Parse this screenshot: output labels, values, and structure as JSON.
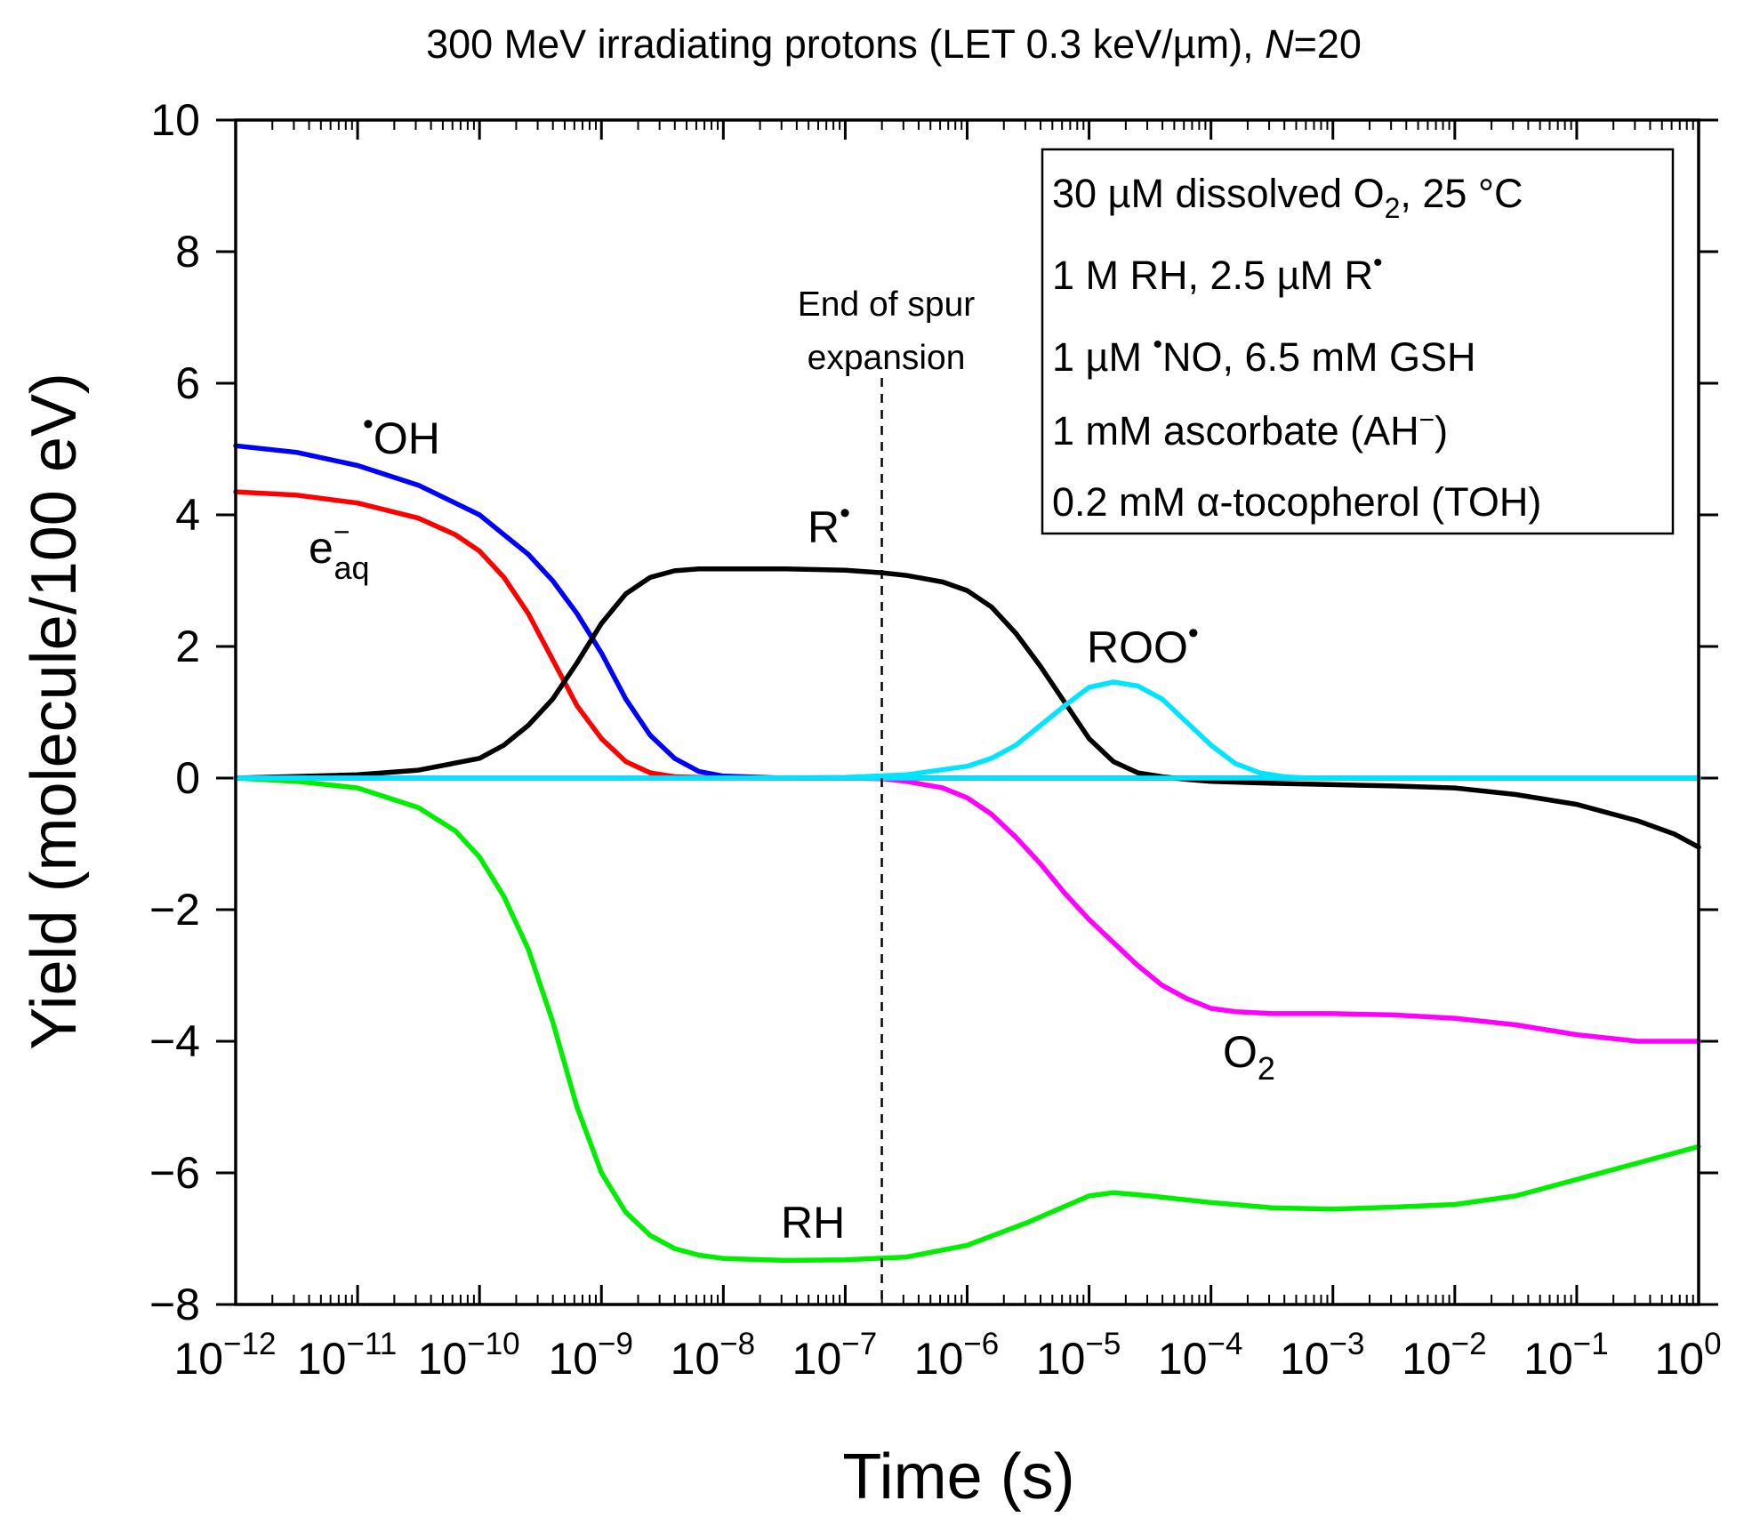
{
  "chart_data": {
    "type": "line",
    "title": {
      "main": "300 MeV irradiating protons (LET 0.3 keV/µm), ",
      "n_symbol": "N",
      "n_value": "=20"
    },
    "xlabel": "Time (s)",
    "ylabel": "Yield (molecule/100 eV)",
    "x_scale": "log",
    "xlim": [
      -12,
      0
    ],
    "ylim": [
      -8,
      10
    ],
    "x_ticks": [
      {
        "base": "10",
        "exp": "−12"
      },
      {
        "base": "10",
        "exp": "−11"
      },
      {
        "base": "10",
        "exp": "−10"
      },
      {
        "base": "10",
        "exp": "−9"
      },
      {
        "base": "10",
        "exp": "−8"
      },
      {
        "base": "10",
        "exp": "−7"
      },
      {
        "base": "10",
        "exp": "−6"
      },
      {
        "base": "10",
        "exp": "−5"
      },
      {
        "base": "10",
        "exp": "−4"
      },
      {
        "base": "10",
        "exp": "−3"
      },
      {
        "base": "10",
        "exp": "−2"
      },
      {
        "base": "10",
        "exp": "−1"
      },
      {
        "base": "10",
        "exp": "0"
      }
    ],
    "y_ticks": [
      "−8",
      "−6",
      "−4",
      "−2",
      "0",
      "2",
      "4",
      "6",
      "8",
      "10"
    ],
    "marker_line": {
      "log_time": -6.7,
      "label_line1": "End of spur",
      "label_line2": "expansion"
    },
    "conditions": {
      "line1_pre": "30 µM dissolved O",
      "line1_sub": "2",
      "line1_post": ", 25 °C",
      "line2_pre": "1 M RH, 2.5 µM R",
      "line2_dot": "•",
      "line3_pre": "1 µM ",
      "line3_dot": "•",
      "line3_post": "NO, 6.5 mM GSH",
      "line4_pre": "1 mM ascorbate (AH",
      "line4_sup": "−",
      "line4_post": ")",
      "line5": "0.2 mM α-tocopherol (TOH)"
    },
    "series": [
      {
        "name": "OH",
        "dot": "•",
        "color": "#0000ff",
        "log_t": [
          -12,
          -11.5,
          -11,
          -10.5,
          -10,
          -9.8,
          -9.6,
          -9.4,
          -9.2,
          -9,
          -8.8,
          -8.6,
          -8.4,
          -8.2,
          -8,
          -7.5,
          -7,
          -6,
          -4,
          -2,
          0
        ],
        "values": [
          5.05,
          4.95,
          4.75,
          4.45,
          4.0,
          3.7,
          3.4,
          3.0,
          2.5,
          1.9,
          1.2,
          0.65,
          0.3,
          0.1,
          0.03,
          0,
          0,
          0,
          0,
          0,
          0
        ]
      },
      {
        "name": "e−aq",
        "label_main": "e",
        "label_sup": "−",
        "label_sub": "aq",
        "color": "#ff0000",
        "log_t": [
          -12,
          -11.5,
          -11,
          -10.5,
          -10.2,
          -10,
          -9.8,
          -9.6,
          -9.4,
          -9.2,
          -9,
          -8.8,
          -8.6,
          -8.4,
          -8,
          -7,
          -6,
          -4,
          -2,
          0
        ],
        "values": [
          4.35,
          4.3,
          4.18,
          3.95,
          3.7,
          3.45,
          3.05,
          2.5,
          1.8,
          1.1,
          0.6,
          0.25,
          0.08,
          0.02,
          0,
          0,
          0,
          0,
          0,
          0
        ]
      },
      {
        "name": "R",
        "dot": "•",
        "color": "#000000",
        "log_t": [
          -12,
          -11,
          -10.5,
          -10,
          -9.8,
          -9.6,
          -9.4,
          -9.2,
          -9,
          -8.8,
          -8.6,
          -8.4,
          -8.2,
          -8,
          -7.5,
          -7,
          -6.7,
          -6.5,
          -6.2,
          -6,
          -5.8,
          -5.6,
          -5.4,
          -5.2,
          -5,
          -4.8,
          -4.6,
          -4.4,
          -4.2,
          -4,
          -3.5,
          -3,
          -2.5,
          -2,
          -1.5,
          -1,
          -0.5,
          -0.2,
          0
        ],
        "values": [
          0,
          0.05,
          0.12,
          0.3,
          0.5,
          0.8,
          1.2,
          1.75,
          2.35,
          2.8,
          3.05,
          3.15,
          3.18,
          3.18,
          3.18,
          3.16,
          3.12,
          3.08,
          2.98,
          2.85,
          2.6,
          2.2,
          1.7,
          1.15,
          0.6,
          0.25,
          0.08,
          0.02,
          -0.02,
          -0.05,
          -0.08,
          -0.1,
          -0.12,
          -0.15,
          -0.25,
          -0.4,
          -0.65,
          -0.85,
          -1.05
        ]
      },
      {
        "name": "ROO",
        "dot": "•",
        "color": "#00e5ff",
        "log_t": [
          -12,
          -8,
          -7,
          -6.5,
          -6,
          -5.8,
          -5.6,
          -5.4,
          -5.2,
          -5,
          -4.8,
          -4.6,
          -4.4,
          -4.2,
          -4,
          -3.8,
          -3.6,
          -3.4,
          -3.2,
          -3,
          -2,
          0
        ],
        "values": [
          0,
          0,
          0.01,
          0.05,
          0.18,
          0.3,
          0.5,
          0.8,
          1.1,
          1.38,
          1.46,
          1.4,
          1.2,
          0.85,
          0.5,
          0.22,
          0.08,
          0.02,
          0,
          0,
          0,
          0
        ]
      },
      {
        "name": "O2",
        "label_main": "O",
        "label_sub": "2",
        "color": "#ff00ff",
        "log_t": [
          -12,
          -7,
          -6.7,
          -6.5,
          -6.2,
          -6,
          -5.8,
          -5.6,
          -5.4,
          -5.2,
          -5,
          -4.8,
          -4.6,
          -4.4,
          -4.2,
          -4,
          -3.8,
          -3.5,
          -3,
          -2.5,
          -2,
          -1.5,
          -1,
          -0.5,
          0
        ],
        "values": [
          0,
          0,
          -0.01,
          -0.05,
          -0.15,
          -0.3,
          -0.55,
          -0.9,
          -1.3,
          -1.75,
          -2.15,
          -2.5,
          -2.85,
          -3.15,
          -3.35,
          -3.5,
          -3.55,
          -3.58,
          -3.58,
          -3.6,
          -3.65,
          -3.75,
          -3.9,
          -4.0,
          -4.0
        ]
      },
      {
        "name": "RH",
        "color": "#00ee00",
        "log_t": [
          -12,
          -11.5,
          -11,
          -10.5,
          -10.2,
          -10,
          -9.8,
          -9.6,
          -9.4,
          -9.2,
          -9,
          -8.8,
          -8.6,
          -8.4,
          -8.2,
          -8,
          -7.5,
          -7,
          -6.5,
          -6,
          -5.5,
          -5,
          -4.8,
          -4.5,
          -4,
          -3.5,
          -3,
          -2.5,
          -2,
          -1.5,
          -1,
          -0.5,
          0
        ],
        "values": [
          0,
          -0.05,
          -0.15,
          -0.45,
          -0.8,
          -1.2,
          -1.8,
          -2.6,
          -3.7,
          -5.0,
          -6.0,
          -6.6,
          -6.95,
          -7.15,
          -7.25,
          -7.3,
          -7.33,
          -7.32,
          -7.28,
          -7.1,
          -6.75,
          -6.35,
          -6.3,
          -6.35,
          -6.45,
          -6.53,
          -6.55,
          -6.52,
          -6.48,
          -6.35,
          -6.1,
          -5.85,
          -5.6
        ]
      },
      {
        "name": "baseline-cyan",
        "color": "#00e5ff",
        "log_t": [
          -12,
          0
        ],
        "values": [
          0,
          0
        ]
      }
    ],
    "labels": {
      "rh": "RH",
      "roo_main": "ROO",
      "r_main": "R",
      "oh_main": "OH",
      "dot": "•"
    }
  }
}
